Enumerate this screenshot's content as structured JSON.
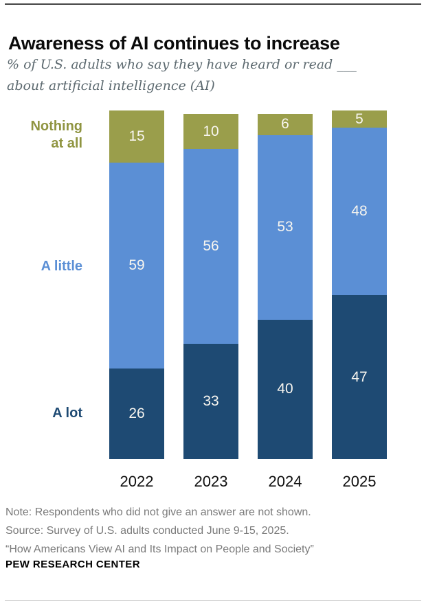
{
  "chart_data": {
    "type": "bar",
    "stacked": true,
    "title": "Awareness of AI continues to increase",
    "subtitle": "% of U.S. adults who say they have heard or read ___\nabout artificial intelligence (AI)",
    "categories": [
      "2022",
      "2023",
      "2024",
      "2025"
    ],
    "series": [
      {
        "name": "A lot",
        "color": "#1e4a73",
        "values": [
          26,
          33,
          40,
          47
        ]
      },
      {
        "name": "A little",
        "color": "#5b8fd5",
        "values": [
          59,
          56,
          53,
          48
        ]
      },
      {
        "name": "Nothing at all",
        "color": "#9a9e4b",
        "values": [
          15,
          10,
          6,
          5
        ]
      }
    ],
    "value_label_color": "#f7f5ef",
    "ylim": [
      0,
      100
    ],
    "grid": false,
    "legend_position": "left"
  },
  "side_labels": {
    "nothing": "Nothing\nat all",
    "a_little": "A little",
    "a_lot": "A lot"
  },
  "notes": [
    "Note: Respondents who did not give an answer are not shown.",
    "Source: Survey of U.S. adults conducted June 9-15, 2025.",
    "“How Americans View AI and Its Impact on People and Society”"
  ],
  "brand": "PEW RESEARCH CENTER"
}
